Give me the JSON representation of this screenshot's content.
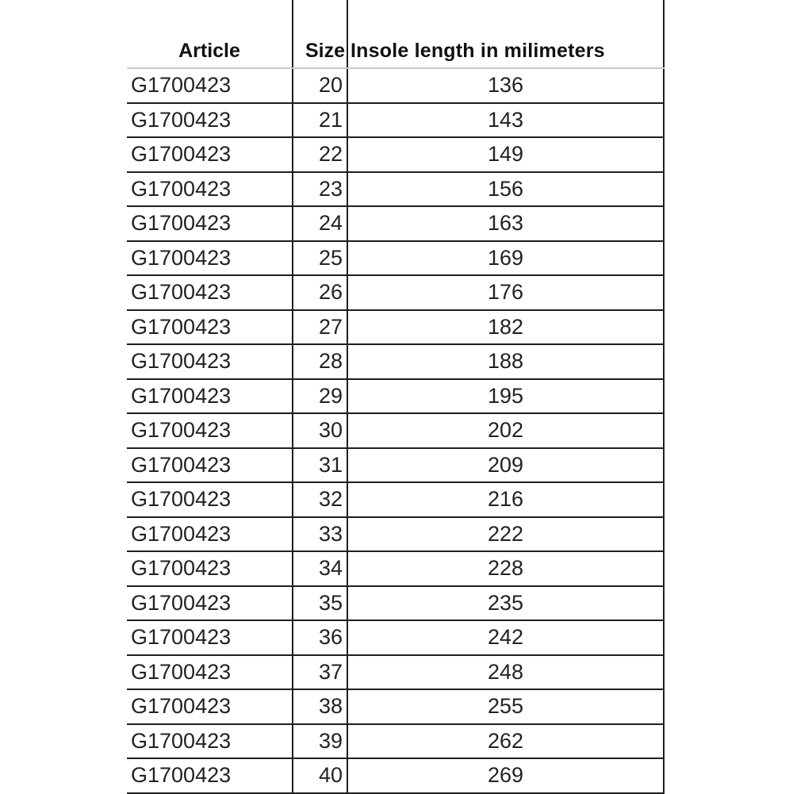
{
  "table": {
    "headers": [
      "Article",
      "Size",
      "Insole length in milimeters"
    ],
    "rows": [
      [
        "G1700423",
        "20",
        "136"
      ],
      [
        "G1700423",
        "21",
        "143"
      ],
      [
        "G1700423",
        "22",
        "149"
      ],
      [
        "G1700423",
        "23",
        "156"
      ],
      [
        "G1700423",
        "24",
        "163"
      ],
      [
        "G1700423",
        "25",
        "169"
      ],
      [
        "G1700423",
        "26",
        "176"
      ],
      [
        "G1700423",
        "27",
        "182"
      ],
      [
        "G1700423",
        "28",
        "188"
      ],
      [
        "G1700423",
        "29",
        "195"
      ],
      [
        "G1700423",
        "30",
        "202"
      ],
      [
        "G1700423",
        "31",
        "209"
      ],
      [
        "G1700423",
        "32",
        "216"
      ],
      [
        "G1700423",
        "33",
        "222"
      ],
      [
        "G1700423",
        "34",
        "228"
      ],
      [
        "G1700423",
        "35",
        "235"
      ],
      [
        "G1700423",
        "36",
        "242"
      ],
      [
        "G1700423",
        "37",
        "248"
      ],
      [
        "G1700423",
        "38",
        "255"
      ],
      [
        "G1700423",
        "39",
        "262"
      ],
      [
        "G1700423",
        "40",
        "269"
      ]
    ]
  }
}
